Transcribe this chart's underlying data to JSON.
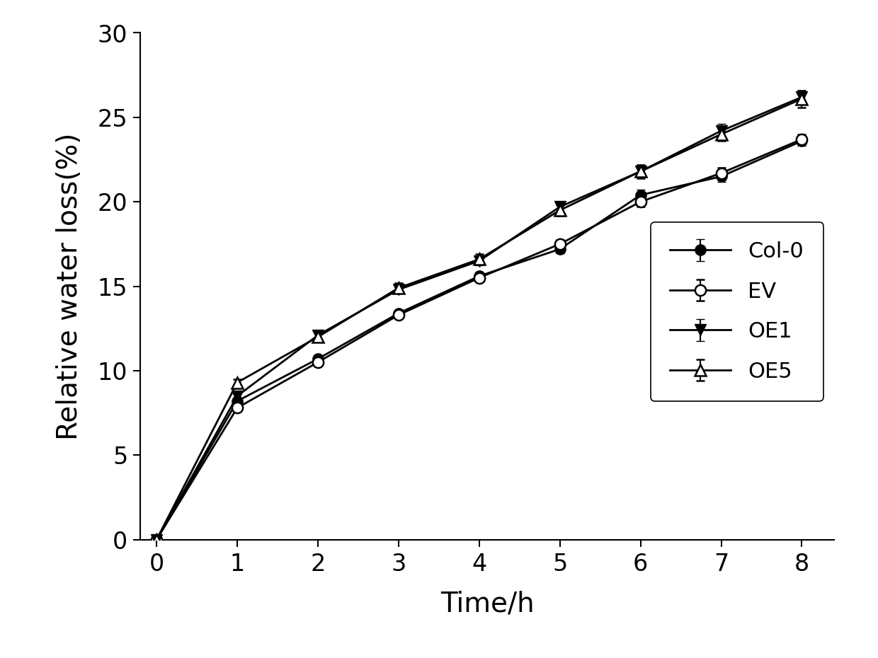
{
  "time": [
    0,
    1,
    2,
    3,
    4,
    5,
    6,
    7,
    8
  ],
  "col0": [
    0,
    8.2,
    10.7,
    13.4,
    15.6,
    17.2,
    20.4,
    21.5,
    23.6
  ],
  "col0_err": [
    0,
    0.15,
    0.2,
    0.2,
    0.2,
    0.25,
    0.3,
    0.3,
    0.3
  ],
  "ev": [
    0,
    7.8,
    10.5,
    13.3,
    15.5,
    17.5,
    20.0,
    21.7,
    23.7
  ],
  "ev_err": [
    0,
    0.15,
    0.2,
    0.2,
    0.2,
    0.25,
    0.3,
    0.3,
    0.3
  ],
  "oe1": [
    0,
    8.5,
    12.1,
    14.8,
    16.5,
    19.7,
    21.8,
    24.2,
    26.2
  ],
  "oe1_err": [
    0,
    0.2,
    0.25,
    0.25,
    0.25,
    0.3,
    0.35,
    0.4,
    0.4
  ],
  "oe5": [
    0,
    9.3,
    12.0,
    14.9,
    16.6,
    19.5,
    21.8,
    24.0,
    26.1
  ],
  "oe5_err": [
    0,
    0.2,
    0.25,
    0.3,
    0.3,
    0.35,
    0.4,
    0.4,
    0.5
  ],
  "ylabel": "Relative water loss(%)",
  "xlabel": "Time/h",
  "ylim": [
    0,
    30
  ],
  "yticks": [
    0,
    5,
    10,
    15,
    20,
    25,
    30
  ],
  "xticks": [
    0,
    1,
    2,
    3,
    4,
    5,
    6,
    7,
    8
  ],
  "legend_labels": [
    "Col-0",
    "EV",
    "OE1",
    "OE5"
  ],
  "line_color": "#000000",
  "background_color": "#ffffff",
  "label_fontsize": 28,
  "tick_fontsize": 24,
  "legend_fontsize": 22,
  "linewidth": 2.0,
  "markersize": 11
}
